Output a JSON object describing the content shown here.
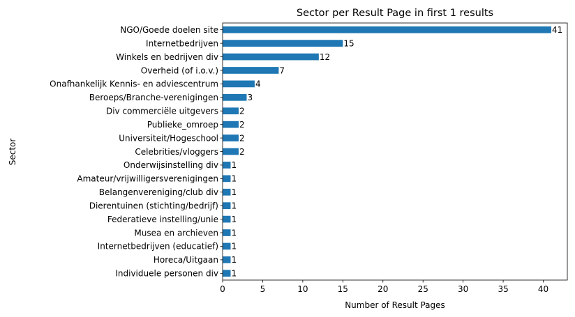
{
  "chart_data": {
    "type": "bar",
    "orientation": "horizontal",
    "title": "Sector per Result Page in first 1 results",
    "xlabel": "Number of Result Pages",
    "ylabel": "Sector",
    "xlim": [
      0,
      43
    ],
    "xticks": [
      0,
      5,
      10,
      15,
      20,
      25,
      30,
      35,
      40
    ],
    "grid": false,
    "bar_color": "#1f77b4",
    "categories": [
      "NGO/Goede doelen site",
      "Internetbedrijven",
      "Winkels en bedrijven div",
      "Overheid (of i.o.v.)",
      "Onafhankelijk Kennis- en adviescentrum",
      "Beroeps/Branche-verenigingen",
      "Div commerciële uitgevers",
      "Publieke_omroep",
      "Universiteit/Hogeschool",
      "Celebrities/vloggers",
      "Onderwijsinstelling div",
      "Amateur/vrijwilligersverenigingen",
      "Belangenvereniging/club div",
      "Dierentuinen (stichting/bedrijf)",
      "Federatieve instelling/unie",
      "Musea en archieven",
      "Internetbedrijven (educatief)",
      "Horeca/Uitgaan",
      "Individuele personen div"
    ],
    "values": [
      41,
      15,
      12,
      7,
      4,
      3,
      2,
      2,
      2,
      2,
      1,
      1,
      1,
      1,
      1,
      1,
      1,
      1,
      1
    ]
  }
}
